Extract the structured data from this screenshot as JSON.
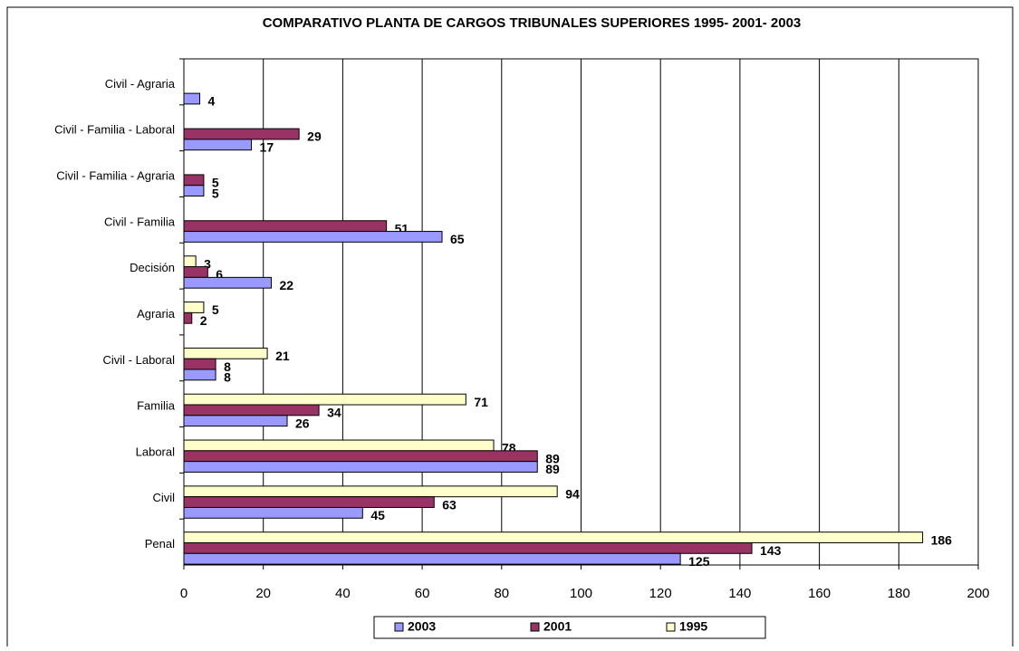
{
  "chart_data": {
    "type": "hbar",
    "title": "COMPARATIVO PLANTA DE CARGOS TRIBUNALES SUPERIORES 1995- 2001- 2003",
    "categories": [
      "Civil - Agraria",
      "Civil - Familia - Laboral",
      "Civil - Familia - Agraria",
      "Civil - Familia",
      "Decisión",
      "Agraria",
      "Civil - Laboral",
      "Familia",
      "Laboral",
      "Civil",
      "Penal"
    ],
    "series": [
      {
        "name": "2003",
        "color": "#9999ff",
        "values": [
          4,
          17,
          5,
          65,
          22,
          null,
          8,
          26,
          89,
          45,
          125
        ]
      },
      {
        "name": "2001",
        "color": "#993366",
        "values": [
          null,
          29,
          5,
          51,
          6,
          2,
          8,
          34,
          89,
          63,
          143
        ]
      },
      {
        "name": "1995",
        "color": "#ffffcc",
        "values": [
          null,
          null,
          null,
          null,
          3,
          5,
          21,
          71,
          78,
          94,
          186
        ]
      }
    ],
    "xlim": [
      0,
      200
    ],
    "xticks": [
      0,
      20,
      40,
      60,
      80,
      100,
      120,
      140,
      160,
      180,
      200
    ],
    "grid": true,
    "legend": "bottom"
  }
}
